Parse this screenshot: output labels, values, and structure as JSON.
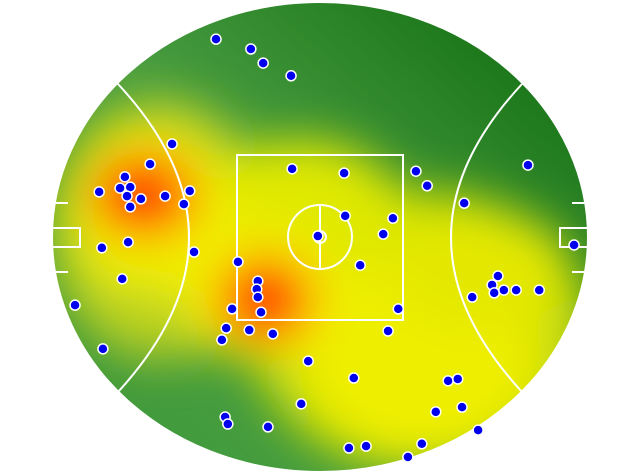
{
  "chart_data": {
    "type": "scatter",
    "color": "#0000ee",
    "xlim": [
      0,
      100
    ],
    "ylim": [
      0,
      100
    ],
    "x": [
      30.6,
      37.1,
      39.4,
      44.6,
      22.4,
      18.3,
      13.6,
      12.7,
      14.6,
      8.8,
      14.0,
      16.6,
      21.1,
      25.7,
      24.6,
      14.6,
      14.2,
      9.3,
      26.5,
      13.1,
      4.3,
      9.5,
      44.8,
      54.5,
      67.9,
      70.0,
      76.9,
      88.8,
      54.7,
      63.6,
      61.8,
      49.6,
      57.5,
      34.7,
      38.4,
      38.2,
      38.4,
      33.6,
      39.0,
      32.5,
      31.7,
      36.8,
      41.2,
      64.6,
      62.7,
      97.4,
      83.2,
      82.1,
      82.5,
      84.3,
      86.6,
      90.9,
      78.4,
      47.8,
      56.3,
      73.9,
      75.7,
      71.6,
      76.5,
      46.5,
      32.3,
      32.8,
      40.3,
      55.4,
      58.6,
      69.0,
      66.4,
      79.5
    ],
    "y": [
      7.9,
      10.0,
      13.0,
      15.7,
      30.2,
      34.5,
      37.2,
      39.6,
      39.4,
      40.4,
      41.3,
      41.9,
      41.3,
      40.2,
      43.0,
      43.6,
      51.1,
      52.3,
      53.2,
      58.9,
      64.5,
      73.8,
      35.5,
      36.4,
      36.0,
      39.1,
      42.8,
      34.7,
      45.5,
      46.0,
      49.4,
      49.8,
      56.0,
      55.3,
      59.4,
      61.1,
      62.8,
      65.3,
      66.0,
      69.4,
      71.9,
      69.8,
      70.6,
      65.3,
      70.0,
      51.7,
      58.3,
      60.2,
      61.9,
      61.3,
      61.3,
      61.3,
      62.8,
      76.4,
      80.0,
      80.6,
      80.2,
      87.2,
      86.2,
      85.5,
      88.3,
      89.8,
      90.4,
      94.9,
      94.5,
      94.0,
      96.8,
      91.1
    ]
  }
}
